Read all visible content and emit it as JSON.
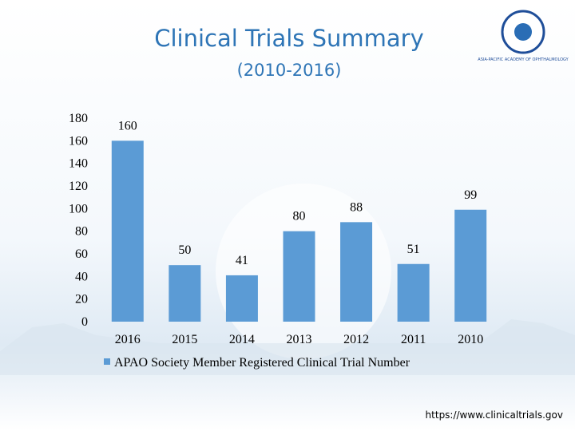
{
  "chart_data": {
    "type": "bar",
    "title": "Clinical Trials Summary",
    "subtitle": "(2010-2016)",
    "categories": [
      "2016",
      "2015",
      "2014",
      "2013",
      "2012",
      "2011",
      "2010"
    ],
    "series": [
      {
        "name": "APAO Society Member Registered Clinical Trial Number",
        "color": "#5b9bd5",
        "values": [
          160,
          50,
          41,
          80,
          88,
          51,
          99
        ]
      }
    ],
    "ylim": [
      0,
      180
    ],
    "yticks": [
      0,
      20,
      40,
      60,
      80,
      100,
      120,
      140,
      160,
      180
    ],
    "grid": false,
    "legend": "bottom",
    "source": "https://www.clinicaltrials.gov",
    "logo_text": "ASIA-PACIFIC ACADEMY OF OPHTHALMOLOGY"
  }
}
